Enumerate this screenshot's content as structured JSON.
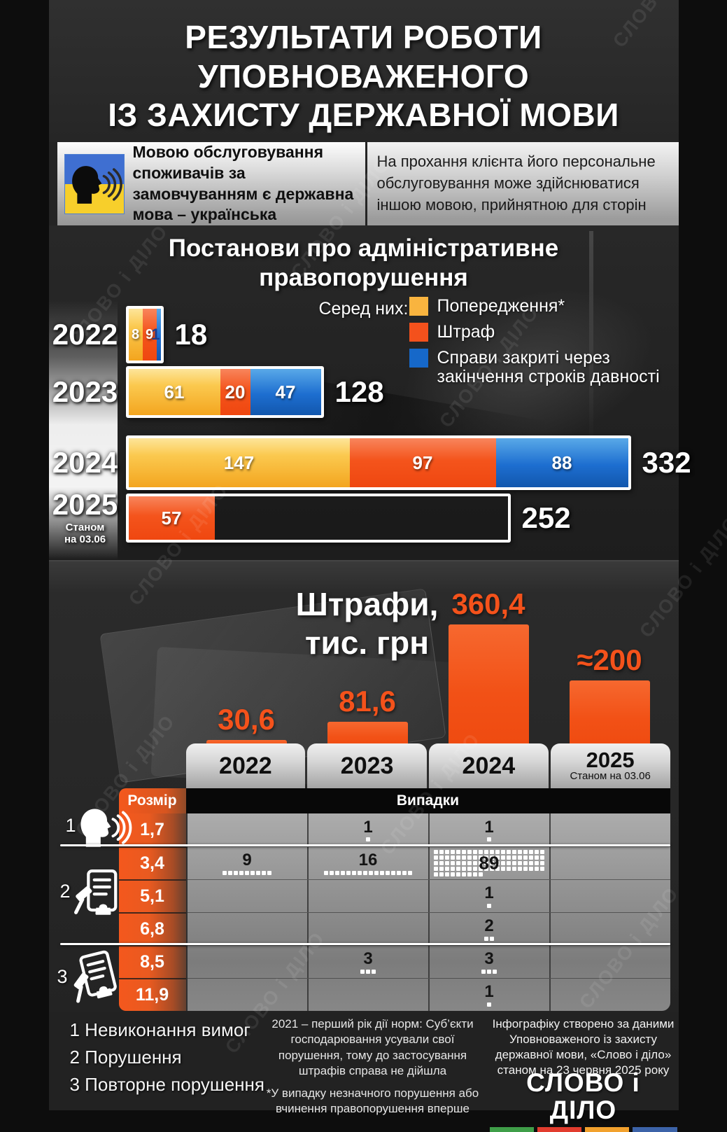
{
  "watermark": "СЛОВО і ДІЛО",
  "accent_colors": {
    "warning_yellow": "#f9b43f",
    "fine_orange": "#f4511c",
    "closed_blue": "#1668c9",
    "bar_orange": "#f4521b"
  },
  "header": {
    "title_lines": [
      "РЕЗУЛЬТАТИ РОБОТИ",
      "УПОВНОВАЖЕНОГО",
      "ІЗ ЗАХИСТУ ДЕРЖАВНОЇ МОВИ"
    ]
  },
  "intro": {
    "left_text": "Мовою обслуговування споживачів за замовчуванням є державна мова – українська",
    "right_text": "На прохання клієнта його персональне обслуговування може здійснюватися іншою мовою, прийнятною для сторін"
  },
  "resolutions": {
    "title_lines": [
      "Постанови про адміністративне",
      "правопорушення"
    ],
    "legend_label": "Серед них:",
    "legend": [
      {
        "key": "warning",
        "label": "Попередження*",
        "color": "#f9b43f"
      },
      {
        "key": "fine",
        "label": "Штраф",
        "color": "#f4511c"
      },
      {
        "key": "closed",
        "label": "Справи закриті через\nзакінчення строків давності",
        "color": "#1668c9"
      }
    ],
    "rows": [
      {
        "year": "2022",
        "total": "18",
        "segments": [
          {
            "key": "warning",
            "label": "8",
            "value": 8
          },
          {
            "key": "fine",
            "label": "9",
            "value": 9
          },
          {
            "key": "closed",
            "label": "1",
            "value": 1
          }
        ]
      },
      {
        "year": "2023",
        "total": "128",
        "segments": [
          {
            "key": "warning",
            "label": "61",
            "value": 61
          },
          {
            "key": "fine",
            "label": "20",
            "value": 20
          },
          {
            "key": "closed",
            "label": "47",
            "value": 47
          }
        ]
      },
      {
        "year": "2024",
        "total": "332",
        "segments": [
          {
            "key": "warning",
            "label": "147",
            "value": 147
          },
          {
            "key": "fine",
            "label": "97",
            "value": 97
          },
          {
            "key": "closed",
            "label": "88",
            "value": 88
          }
        ]
      },
      {
        "year": "2025",
        "year_note": "Станом\nна 03.06",
        "total": "252",
        "total_value": 252,
        "segments": [
          {
            "key": "fine",
            "label": "57",
            "value": 57
          }
        ]
      }
    ]
  },
  "fines": {
    "title_lines": [
      "Штрафи,",
      "тис. грн"
    ],
    "bars": [
      {
        "year": "2022",
        "label": "30,6",
        "value": 30.6
      },
      {
        "year": "2023",
        "label": "81,6",
        "value": 81.6
      },
      {
        "year": "2024",
        "label": "360,4",
        "value": 360.4
      },
      {
        "year": "2025",
        "label": "≈200",
        "value": 200
      }
    ]
  },
  "table": {
    "size_header": "Розмір",
    "cases_header": "Випадки",
    "columns": [
      {
        "year": "2022"
      },
      {
        "year": "2023"
      },
      {
        "year": "2024"
      },
      {
        "year": "2025",
        "note": "Станом на 03.06"
      }
    ],
    "groups": [
      {
        "num": "1",
        "icon": "speaking-head-icon",
        "rows": [
          {
            "size": "1,7",
            "cases": [
              null,
              1,
              1,
              null
            ]
          }
        ]
      },
      {
        "num": "2",
        "icon": "protocol-gavel-icon",
        "rows": [
          {
            "size": "3,4",
            "cases": [
              9,
              16,
              89,
              null
            ]
          },
          {
            "size": "5,1",
            "cases": [
              null,
              null,
              1,
              null
            ]
          },
          {
            "size": "6,8",
            "cases": [
              null,
              null,
              2,
              null
            ]
          }
        ]
      },
      {
        "num": "3",
        "icon": "repeat-protocol-gavel-icon",
        "rows": [
          {
            "size": "8,5",
            "cases": [
              null,
              3,
              3,
              null
            ]
          },
          {
            "size": "11,9",
            "cases": [
              null,
              null,
              1,
              null
            ]
          }
        ]
      }
    ]
  },
  "footer": {
    "legend_lines": [
      "1 Невиконання вимог",
      "2 Порушення",
      "3 Повторне порушення"
    ],
    "note_2021": "2021 – перший рік дії норм: Суб’єкти господарювання усували свої порушення, тому до застосування штрафів справа не дійшла",
    "note_asterisk": "*У випадку незначного порушення або вчинення правопорушення вперше",
    "source": "Інфографіку створено за даними Уповноваженого із захисту державної мови, «Слово і діло» станом на 23 червня 2025 року",
    "logo_text": "СЛОВО і ДІЛО",
    "logo_bar_colors": [
      "#3f9e48",
      "#e23c2e",
      "#f2a12d",
      "#3c63a8"
    ]
  },
  "chart_data": [
    {
      "type": "bar",
      "orientation": "horizontal",
      "stacked": true,
      "title": "Постанови про адміністративне правопорушення",
      "categories": [
        "2022",
        "2023",
        "2024",
        "2025 (станом на 03.06)"
      ],
      "series": [
        {
          "name": "Попередження*",
          "values": [
            8,
            61,
            147,
            null
          ]
        },
        {
          "name": "Штраф",
          "values": [
            9,
            20,
            97,
            57
          ]
        },
        {
          "name": "Справи закриті через закінчення строків давності",
          "values": [
            1,
            47,
            88,
            null
          ]
        }
      ],
      "totals": [
        18,
        128,
        332,
        252
      ],
      "legend_position": "top-right"
    },
    {
      "type": "bar",
      "title": "Штрафи, тис. грн",
      "categories": [
        "2022",
        "2023",
        "2024",
        "2025 (станом на 03.06)"
      ],
      "values": [
        30.6,
        81.6,
        360.4,
        200
      ],
      "value_labels": [
        "30,6",
        "81,6",
        "360,4",
        "≈200"
      ],
      "ylim": [
        0,
        400
      ]
    },
    {
      "type": "table",
      "title": "Випадки",
      "row_header": "Розмір",
      "columns": [
        "2022",
        "2023",
        "2024",
        "2025 (станом на 03.06)"
      ],
      "rows": [
        {
          "group": "1 Невиконання вимог",
          "size": 1.7,
          "cases": [
            null,
            1,
            1,
            null
          ]
        },
        {
          "group": "2 Порушення",
          "size": 3.4,
          "cases": [
            9,
            16,
            89,
            null
          ]
        },
        {
          "group": "2 Порушення",
          "size": 5.1,
          "cases": [
            null,
            null,
            1,
            null
          ]
        },
        {
          "group": "2 Порушення",
          "size": 6.8,
          "cases": [
            null,
            null,
            2,
            null
          ]
        },
        {
          "group": "3 Повторне порушення",
          "size": 8.5,
          "cases": [
            null,
            3,
            3,
            null
          ]
        },
        {
          "group": "3 Повторне порушення",
          "size": 11.9,
          "cases": [
            null,
            null,
            1,
            null
          ]
        }
      ]
    }
  ]
}
